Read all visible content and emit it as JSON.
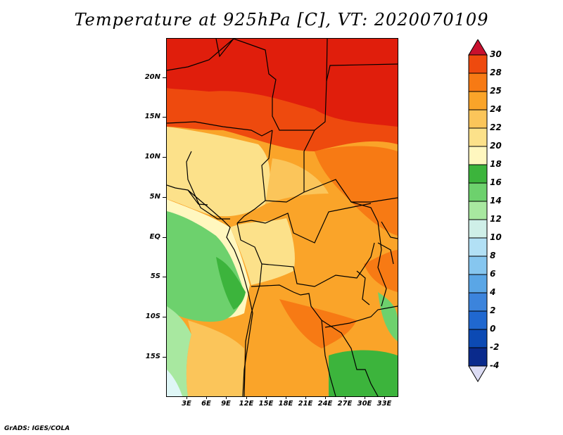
{
  "title": "Temperature at 925hPa [C], VT: 2020070109",
  "credit": "GrADS: IGES/COLA",
  "lat_ticks": [
    "20N",
    "15N",
    "10N",
    "5N",
    "EQ",
    "5S",
    "10S",
    "15S"
  ],
  "lon_ticks": [
    "3E",
    "6E",
    "9E",
    "12E",
    "15E",
    "18E",
    "21E",
    "24E",
    "27E",
    "30E",
    "33E"
  ],
  "colorbar": {
    "labels": [
      "30",
      "28",
      "25",
      "24",
      "22",
      "20",
      "18",
      "16",
      "14",
      "12",
      "10",
      "8",
      "6",
      "4",
      "2",
      "0",
      "-2",
      "-4"
    ],
    "colors": [
      "#e31a0c",
      "#ee4a0e",
      "#f77a14",
      "#faa429",
      "#fbc55a",
      "#fce18a",
      "#fff7bf",
      "#3cb43c",
      "#6dd16d",
      "#a8e8a0",
      "#cfefe8",
      "#b2e0f5",
      "#86c6ef",
      "#5aa6e6",
      "#3c84dc",
      "#2068d0",
      "#0c4ab4",
      "#0a2a8c",
      "#08166a"
    ],
    "top_color": "#c8102e",
    "bottom_color": "#dcdcf4"
  },
  "map": {
    "extent": {
      "lon": [
        0,
        35
      ],
      "lat": [
        -20,
        25
      ]
    },
    "colors": {
      "hot": "#e01e0c",
      "red_orange": "#ee4a0e",
      "orange": "#f77a14",
      "light_orange": "#faa429",
      "tan": "#fbc55a",
      "yellow": "#fce18a",
      "pale": "#fff7bf",
      "green": "#3cb43c",
      "mid_green": "#6dd16d",
      "light_green": "#a8e8a0",
      "cyan": "#dff6f6"
    }
  }
}
